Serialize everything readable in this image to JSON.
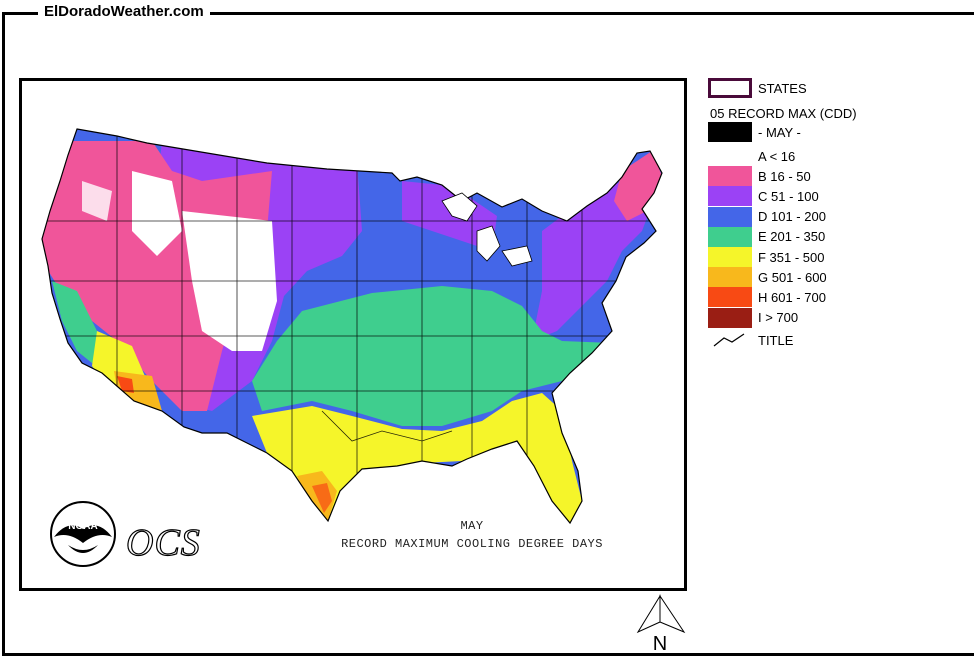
{
  "site": {
    "title": "ElDoradoWeather.com"
  },
  "map": {
    "caption_line1": "MAY",
    "caption_line2": "RECORD MAXIMUM COOLING DEGREE DAYS",
    "logo_text": "NOAA",
    "ocs_text": "OCS",
    "north_label": "N"
  },
  "legend": {
    "states_label": "STATES",
    "header": "05 RECORD MAX (CDD)",
    "month_label": "- MAY -",
    "title_label": "TITLE",
    "classes": [
      {
        "label": "A < 16",
        "color": "#ffffff"
      },
      {
        "label": "B 16 - 50",
        "color": "#f0559a"
      },
      {
        "label": "C 51 - 100",
        "color": "#9b42f5"
      },
      {
        "label": "D 101 - 200",
        "color": "#4466e8"
      },
      {
        "label": "E 201 - 350",
        "color": "#3fce8e"
      },
      {
        "label": "F 351 - 500",
        "color": "#f5f52a"
      },
      {
        "label": "G 501 - 600",
        "color": "#f8b81c"
      },
      {
        "label": "H 601 - 700",
        "color": "#f84a14"
      },
      {
        "label": "I > 700",
        "color": "#9a1e14"
      }
    ],
    "states_border_color": "#4a0a3a",
    "month_swatch_color": "#000000"
  }
}
